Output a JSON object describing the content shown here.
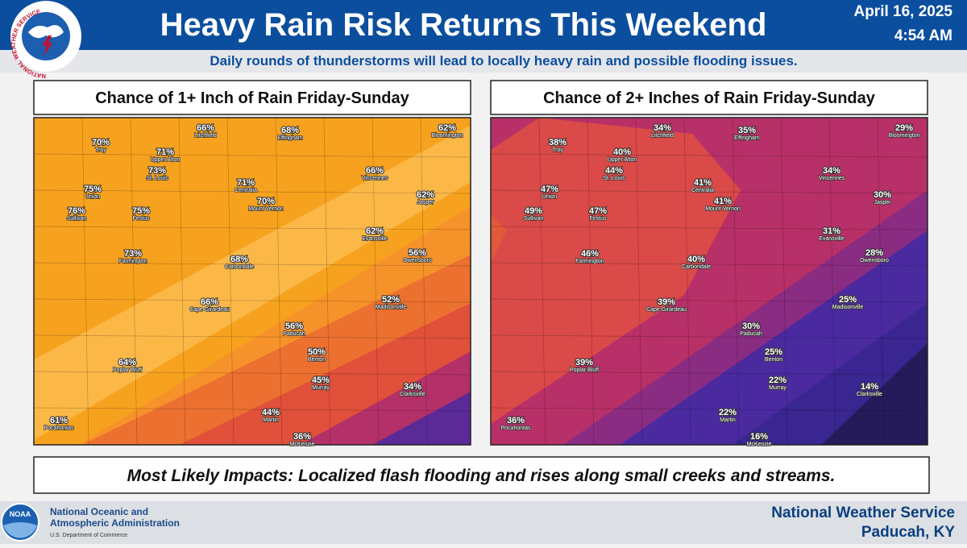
{
  "header": {
    "title": "Heavy Rain Risk Returns This Weekend",
    "date": "April 16, 2025",
    "time": "4:54 AM",
    "subtitle": "Daily rounds of thunderstorms will lead to locally heavy rain and possible flooding issues.",
    "logo": "NATIONAL WEATHER SERVICE"
  },
  "maps": [
    {
      "title": "Chance of 1+ Inch of Rain Friday-Sunday",
      "labels": [
        {
          "value": "66%",
          "city": "Litchfield"
        },
        {
          "value": "68%",
          "city": "Effingham"
        },
        {
          "value": "62%",
          "city": "Bloomington"
        },
        {
          "value": "70%",
          "city": "Troy"
        },
        {
          "value": "71%",
          "city": "Upper Alton"
        },
        {
          "value": "73%",
          "city": "St. Louis"
        },
        {
          "value": "66%",
          "city": "Vincennes"
        },
        {
          "value": "62%",
          "city": "Jasper"
        },
        {
          "value": "71%",
          "city": "Centralia"
        },
        {
          "value": "70%",
          "city": "Mount Vernon"
        },
        {
          "value": "75%",
          "city": "Union"
        },
        {
          "value": "76%",
          "city": "Sullivan"
        },
        {
          "value": "75%",
          "city": "Festus"
        },
        {
          "value": "62%",
          "city": "Evansville"
        },
        {
          "value": "56%",
          "city": "Owensboro"
        },
        {
          "value": "73%",
          "city": "Farmington"
        },
        {
          "value": "68%",
          "city": "Carbondale"
        },
        {
          "value": "52%",
          "city": "Madisonville"
        },
        {
          "value": "66%",
          "city": "Cape Girardeau"
        },
        {
          "value": "56%",
          "city": "Paducah"
        },
        {
          "value": "50%",
          "city": "Benton"
        },
        {
          "value": "64%",
          "city": "Poplar Bluff"
        },
        {
          "value": "45%",
          "city": "Murray"
        },
        {
          "value": "34%",
          "city": "Clarksville"
        },
        {
          "value": "44%",
          "city": "Martin"
        },
        {
          "value": "61%",
          "city": "Pocahontas"
        },
        {
          "value": "36%",
          "city": "McKenzie"
        }
      ]
    },
    {
      "title": "Chance of 2+ Inches of Rain Friday-Sunday",
      "labels": [
        {
          "value": "34%",
          "city": "Litchfield"
        },
        {
          "value": "35%",
          "city": "Effingham"
        },
        {
          "value": "29%",
          "city": "Bloomington"
        },
        {
          "value": "38%",
          "city": "Troy"
        },
        {
          "value": "40%",
          "city": "Upper Alton"
        },
        {
          "value": "44%",
          "city": "St. Louis"
        },
        {
          "value": "34%",
          "city": "Vincennes"
        },
        {
          "value": "30%",
          "city": "Jasper"
        },
        {
          "value": "41%",
          "city": "Centralia"
        },
        {
          "value": "41%",
          "city": "Mount Vernon"
        },
        {
          "value": "47%",
          "city": "Union"
        },
        {
          "value": "49%",
          "city": "Sullivan"
        },
        {
          "value": "47%",
          "city": "Festus"
        },
        {
          "value": "31%",
          "city": "Evansville"
        },
        {
          "value": "28%",
          "city": "Owensboro"
        },
        {
          "value": "46%",
          "city": "Farmington"
        },
        {
          "value": "40%",
          "city": "Carbondale"
        },
        {
          "value": "25%",
          "city": "Madisonville"
        },
        {
          "value": "39%",
          "city": "Cape Girardeau"
        },
        {
          "value": "30%",
          "city": "Paducah"
        },
        {
          "value": "25%",
          "city": "Benton"
        },
        {
          "value": "39%",
          "city": "Poplar Bluff"
        },
        {
          "value": "22%",
          "city": "Murray"
        },
        {
          "value": "14%",
          "city": "Clarksville"
        },
        {
          "value": "22%",
          "city": "Martin"
        },
        {
          "value": "36%",
          "city": "Pocahontas"
        },
        {
          "value": "16%",
          "city": "McKenzie"
        }
      ]
    }
  ],
  "impacts": "Most Likely Impacts: Localized flash flooding and rises along small creeks and streams.",
  "footer": {
    "noaa_logo": "NOAA",
    "agency_line1": "National Oceanic and",
    "agency_line2": "Atmospheric Administration",
    "department": "U.S. Department of Commerce",
    "office": "National Weather Service",
    "location": "Paducah, KY"
  }
}
